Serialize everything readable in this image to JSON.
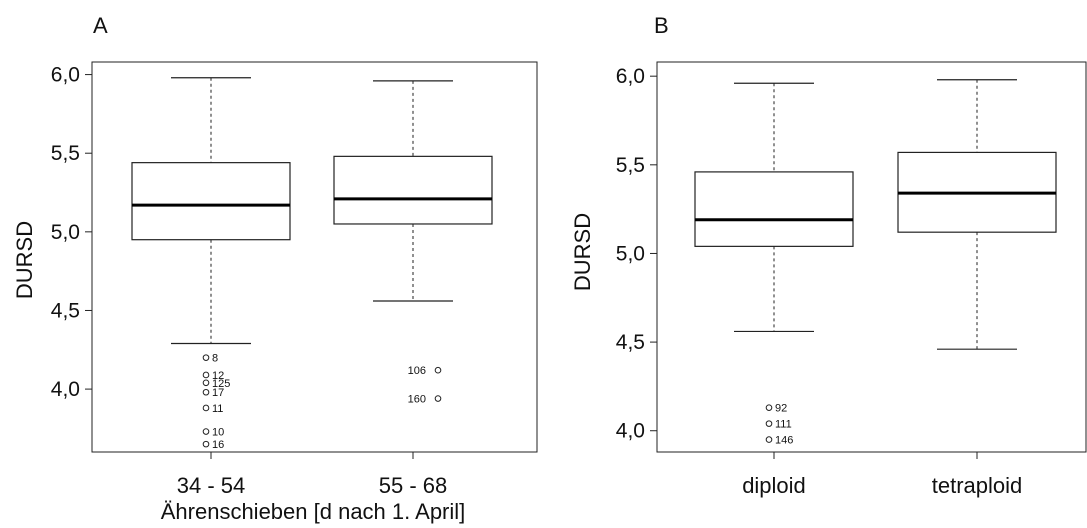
{
  "chart_data": [
    {
      "type": "boxplot",
      "panel_label": "A",
      "ylabel": "DURSD",
      "xlabel": "Ährenschieben [d nach 1. April]",
      "ylim": [
        3.6,
        6.08
      ],
      "yticks": [
        {
          "value": 4.0,
          "label": "4,0"
        },
        {
          "value": 4.5,
          "label": "4,5"
        },
        {
          "value": 5.0,
          "label": "5,0"
        },
        {
          "value": 5.5,
          "label": "5,5"
        },
        {
          "value": 6.0,
          "label": "6,0"
        }
      ],
      "categories": [
        "34 - 54",
        "55 - 68"
      ],
      "boxes": [
        {
          "whisker_low": 4.29,
          "q1": 4.95,
          "median": 5.17,
          "q3": 5.44,
          "whisker_high": 5.98,
          "outliers": [
            {
              "value": 4.2,
              "label": "8"
            },
            {
              "value": 4.09,
              "label": "12"
            },
            {
              "value": 4.04,
              "label": "125"
            },
            {
              "value": 3.98,
              "label": "17"
            },
            {
              "value": 3.88,
              "label": "11"
            },
            {
              "value": 3.73,
              "label": "10"
            },
            {
              "value": 3.65,
              "label": "16"
            }
          ]
        },
        {
          "whisker_low": 4.56,
          "q1": 5.05,
          "median": 5.21,
          "q3": 5.48,
          "whisker_high": 5.96,
          "outliers": [
            {
              "value": 4.12,
              "label": "106"
            },
            {
              "value": 3.94,
              "label": "160"
            }
          ]
        }
      ]
    },
    {
      "type": "boxplot",
      "panel_label": "B",
      "ylabel": "DURSD",
      "xlabel": "",
      "ylim": [
        3.88,
        6.08
      ],
      "yticks": [
        {
          "value": 4.0,
          "label": "4,0"
        },
        {
          "value": 4.5,
          "label": "4,5"
        },
        {
          "value": 5.0,
          "label": "5,0"
        },
        {
          "value": 5.5,
          "label": "5,5"
        },
        {
          "value": 6.0,
          "label": "6,0"
        }
      ],
      "categories": [
        "diploid",
        "tetraploid"
      ],
      "boxes": [
        {
          "whisker_low": 4.56,
          "q1": 5.04,
          "median": 5.19,
          "q3": 5.46,
          "whisker_high": 5.96,
          "outliers": [
            {
              "value": 4.13,
              "label": "92"
            },
            {
              "value": 4.04,
              "label": "111"
            },
            {
              "value": 3.95,
              "label": "146"
            }
          ]
        },
        {
          "whisker_low": 4.46,
          "q1": 5.12,
          "median": 5.34,
          "q3": 5.57,
          "whisker_high": 5.98,
          "outliers": []
        }
      ]
    }
  ]
}
